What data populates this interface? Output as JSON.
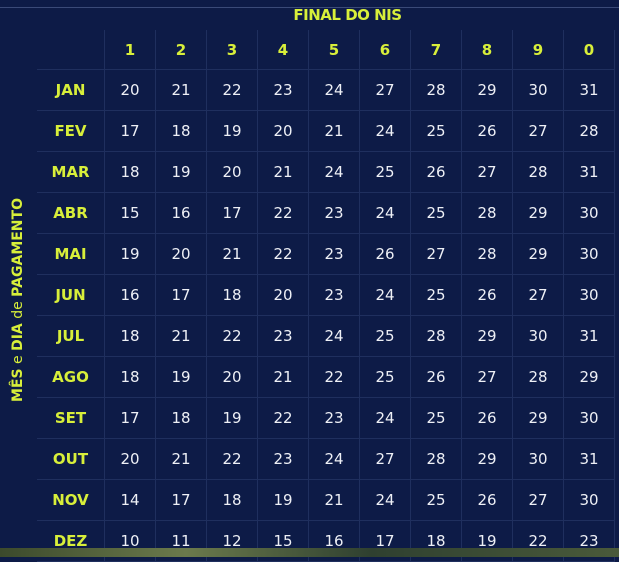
{
  "title": "FINAL DO NIS",
  "side_label": {
    "part1": "MÊS",
    "part2": " e ",
    "part3": "DIA",
    "part4": " de ",
    "part5": "PAGAMENTO"
  },
  "columns": [
    "1",
    "2",
    "3",
    "4",
    "5",
    "6",
    "7",
    "8",
    "9",
    "0"
  ],
  "rows": [
    {
      "month": "JAN",
      "days": [
        "20",
        "21",
        "22",
        "23",
        "24",
        "27",
        "28",
        "29",
        "30",
        "31"
      ]
    },
    {
      "month": "FEV",
      "days": [
        "17",
        "18",
        "19",
        "20",
        "21",
        "24",
        "25",
        "26",
        "27",
        "28"
      ]
    },
    {
      "month": "MAR",
      "days": [
        "18",
        "19",
        "20",
        "21",
        "24",
        "25",
        "26",
        "27",
        "28",
        "31"
      ]
    },
    {
      "month": "ABR",
      "days": [
        "15",
        "16",
        "17",
        "22",
        "23",
        "24",
        "25",
        "28",
        "29",
        "30"
      ]
    },
    {
      "month": "MAI",
      "days": [
        "19",
        "20",
        "21",
        "22",
        "23",
        "26",
        "27",
        "28",
        "29",
        "30"
      ]
    },
    {
      "month": "JUN",
      "days": [
        "16",
        "17",
        "18",
        "20",
        "23",
        "24",
        "25",
        "26",
        "27",
        "30"
      ]
    },
    {
      "month": "JUL",
      "days": [
        "18",
        "21",
        "22",
        "23",
        "24",
        "25",
        "28",
        "29",
        "30",
        "31"
      ]
    },
    {
      "month": "AGO",
      "days": [
        "18",
        "19",
        "20",
        "21",
        "22",
        "25",
        "26",
        "27",
        "28",
        "29"
      ]
    },
    {
      "month": "SET",
      "days": [
        "17",
        "18",
        "19",
        "22",
        "23",
        "24",
        "25",
        "26",
        "29",
        "30"
      ]
    },
    {
      "month": "OUT",
      "days": [
        "20",
        "21",
        "22",
        "23",
        "24",
        "27",
        "28",
        "29",
        "30",
        "31"
      ]
    },
    {
      "month": "NOV",
      "days": [
        "14",
        "17",
        "18",
        "19",
        "21",
        "24",
        "25",
        "26",
        "27",
        "30"
      ]
    },
    {
      "month": "DEZ",
      "days": [
        "10",
        "11",
        "12",
        "15",
        "16",
        "17",
        "18",
        "19",
        "22",
        "23"
      ]
    }
  ],
  "colors": {
    "background": "#0d1b47",
    "accent": "#d8ef3a",
    "text": "#eef0f6"
  }
}
